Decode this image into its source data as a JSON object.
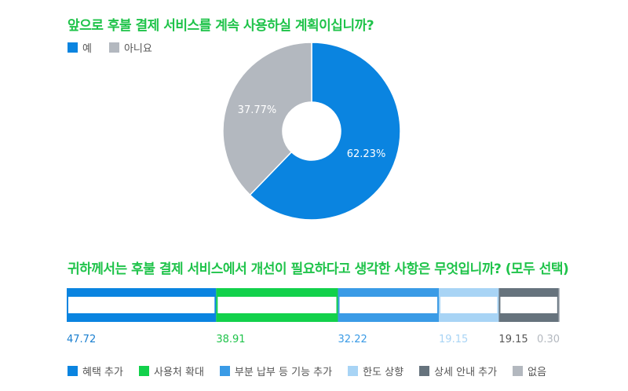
{
  "chart_data": [
    {
      "type": "pie",
      "title": "앞으로 후불 결제 서비스를 계속 사용하실 계획이십니까?",
      "legend_placement": "top-left",
      "categories": [
        "예",
        "아니요"
      ],
      "values": [
        62.23,
        37.77
      ],
      "labels": [
        "62.23%",
        "37.77%"
      ],
      "colors": [
        "#0a84e0",
        "#b3b8bf"
      ],
      "donut": true
    },
    {
      "type": "bar",
      "stacked": true,
      "orientation": "horizontal",
      "title": "귀하께서는 후불 결제 서비스에서 개선이 필요하다고 생각한 사항은 무엇입니까? (모두 선택)",
      "legend_placement": "bottom-left",
      "categories": [
        "혜택 추가",
        "사용처 확대",
        "부분 납부 등 기능 추가",
        "한도 상향",
        "상세 안내 추가",
        "없음"
      ],
      "values": [
        47.72,
        38.91,
        32.22,
        19.15,
        19.15,
        0.3
      ],
      "labels": [
        "47.72",
        "38.91",
        "32.22",
        "19.15",
        "19.15",
        "0.30"
      ],
      "colors": [
        "#0a84e0",
        "#12d14b",
        "#3a9be6",
        "#a8d4f5",
        "#66737d",
        "#b3b8bf"
      ]
    }
  ]
}
